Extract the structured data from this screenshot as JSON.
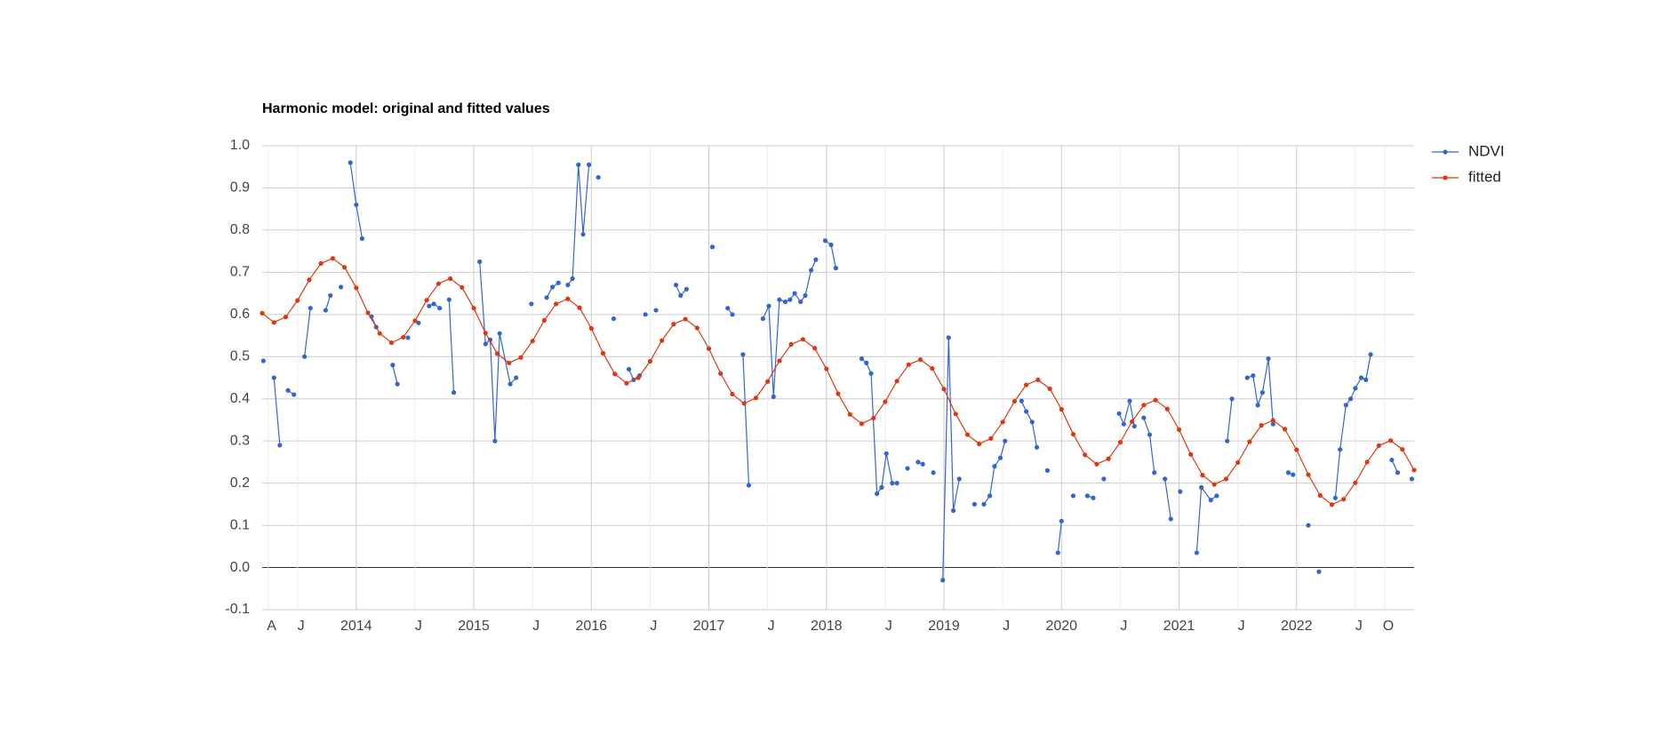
{
  "chart_data": {
    "type": "line",
    "title": "Harmonic model: original and fitted values",
    "xlim": [
      2013.2,
      2023.0
    ],
    "xticks": [
      {
        "value": 2013.25,
        "label": "A"
      },
      {
        "value": 2013.5,
        "label": "J"
      },
      2014,
      {
        "value": 2014.5,
        "label": "J"
      },
      2015,
      {
        "value": 2015.5,
        "label": "J"
      },
      2016,
      {
        "value": 2016.5,
        "label": "J"
      },
      2017,
      {
        "value": 2017.5,
        "label": "J"
      },
      2018,
      {
        "value": 2018.5,
        "label": "J"
      },
      2019,
      {
        "value": 2019.5,
        "label": "J"
      },
      2020,
      {
        "value": 2020.5,
        "label": "J"
      },
      2021,
      {
        "value": 2021.5,
        "label": "J"
      },
      2022,
      {
        "value": 2022.5,
        "label": "J"
      },
      {
        "value": 2022.75,
        "label": "O"
      }
    ],
    "ylim": [
      -0.1,
      1.0
    ],
    "yticks": [
      {
        "value": 1,
        "label": "1.0"
      },
      0.9,
      0.8,
      0.7,
      0.6,
      0.5,
      0.4,
      0.3,
      0.2,
      0.1,
      {
        "value": 0,
        "label": "0.0"
      },
      -0.1
    ],
    "grid": true,
    "legend": "top-right",
    "series": [
      {
        "name": "NDVI",
        "color": "#3366cc",
        "x": [
          2013.21,
          null,
          2013.3,
          2013.35,
          null,
          2013.42,
          2013.47,
          null,
          2013.56,
          2013.61,
          null,
          2013.74,
          2013.78,
          null,
          2013.87,
          null,
          2013.95,
          2014.0,
          2014.05,
          null,
          2014.13,
          2014.17,
          null,
          2014.31,
          2014.35,
          null,
          2014.44,
          null,
          2014.53,
          null,
          2014.62,
          2014.66,
          2014.71,
          null,
          2014.79,
          2014.83,
          null,
          2015.05,
          2015.1,
          2015.14,
          2015.18,
          2015.22,
          2015.31,
          2015.36,
          null,
          2015.49,
          null,
          2015.62,
          2015.67,
          2015.72,
          null,
          2015.8,
          2015.84,
          2015.89,
          2015.93,
          2015.98,
          null,
          2016.06,
          null,
          2016.19,
          null,
          2016.32,
          2016.36,
          2016.41,
          null,
          2016.46,
          null,
          2016.55,
          null,
          2016.72,
          2016.76,
          2016.81,
          null,
          2017.03,
          null,
          2017.16,
          2017.2,
          null,
          2017.29,
          2017.34,
          null,
          2017.46,
          2017.51,
          2017.55,
          2017.6,
          2017.65,
          2017.69,
          2017.73,
          2017.78,
          2017.82,
          2017.87,
          2017.91,
          null,
          2017.99,
          2018.04,
          2018.08,
          null,
          2018.3,
          2018.34,
          2018.38,
          2018.43,
          2018.47,
          2018.51,
          2018.56,
          2018.6,
          null,
          2018.69,
          null,
          2018.78,
          2018.82,
          null,
          2018.91,
          null,
          2018.99,
          2019.04,
          2019.08,
          2019.13,
          null,
          2019.26,
          null,
          2019.34,
          2019.39,
          2019.43,
          2019.48,
          2019.52,
          null,
          2019.66,
          2019.7,
          2019.75,
          2019.79,
          null,
          2019.88,
          null,
          2019.97,
          2020.0,
          null,
          2020.1,
          null,
          2020.22,
          2020.27,
          null,
          2020.36,
          null,
          2020.49,
          2020.53,
          2020.58,
          2020.62,
          null,
          2020.7,
          2020.75,
          2020.79,
          null,
          2020.88,
          2020.93,
          null,
          2021.01,
          null,
          2021.15,
          2021.19,
          2021.27,
          2021.32,
          null,
          2021.41,
          2021.45,
          null,
          2021.58,
          2021.63,
          2021.67,
          2021.71,
          2021.76,
          2021.8,
          null,
          2021.93,
          2021.97,
          null,
          2022.1,
          null,
          2022.19,
          null,
          2022.33,
          2022.37,
          2022.42,
          2022.46,
          2022.5,
          2022.55,
          2022.59,
          2022.63,
          null,
          2022.81,
          2022.86,
          null,
          2022.98
        ],
        "values": [
          0.49,
          null,
          0.45,
          0.29,
          null,
          0.42,
          0.41,
          null,
          0.5,
          0.615,
          null,
          0.61,
          0.645,
          null,
          0.665,
          null,
          0.96,
          0.86,
          0.78,
          null,
          0.595,
          0.57,
          null,
          0.48,
          0.435,
          null,
          0.545,
          null,
          0.58,
          null,
          0.62,
          0.625,
          0.615,
          null,
          0.635,
          0.415,
          null,
          0.725,
          0.53,
          0.54,
          0.3,
          0.555,
          0.435,
          0.45,
          null,
          0.625,
          null,
          0.64,
          0.665,
          0.675,
          null,
          0.67,
          0.685,
          0.955,
          0.79,
          0.955,
          null,
          0.925,
          null,
          0.59,
          null,
          0.47,
          0.445,
          0.455,
          null,
          0.6,
          null,
          0.61,
          null,
          0.67,
          0.645,
          0.66,
          null,
          0.76,
          null,
          0.615,
          0.6,
          null,
          0.505,
          0.195,
          null,
          0.59,
          0.62,
          0.405,
          0.635,
          0.63,
          0.635,
          0.65,
          0.63,
          0.645,
          0.705,
          0.73,
          null,
          0.775,
          0.765,
          0.71,
          null,
          0.495,
          0.485,
          0.46,
          0.175,
          0.19,
          0.27,
          0.2,
          0.2,
          null,
          0.235,
          null,
          0.25,
          0.245,
          null,
          0.225,
          null,
          -0.03,
          0.545,
          0.135,
          0.21,
          null,
          0.15,
          null,
          0.15,
          0.17,
          0.24,
          0.26,
          0.3,
          null,
          0.395,
          0.37,
          0.345,
          0.285,
          null,
          0.23,
          null,
          0.035,
          0.11,
          null,
          0.17,
          null,
          0.17,
          0.165,
          null,
          0.21,
          null,
          0.365,
          0.34,
          0.395,
          0.335,
          null,
          0.355,
          0.315,
          0.225,
          null,
          0.21,
          0.115,
          null,
          0.18,
          null,
          0.035,
          0.19,
          0.16,
          0.17,
          null,
          0.3,
          0.4,
          null,
          0.45,
          0.455,
          0.385,
          0.415,
          0.495,
          0.34,
          null,
          0.225,
          0.22,
          null,
          0.1,
          null,
          -0.01,
          null,
          0.165,
          0.28,
          0.385,
          0.4,
          0.425,
          0.45,
          0.445,
          0.505,
          null,
          0.255,
          0.225,
          null,
          0.21
        ]
      },
      {
        "name": "fitted",
        "color": "#dc3912",
        "x": [
          2013.2,
          2013.3,
          2013.4,
          2013.5,
          2013.6,
          2013.7,
          2013.8,
          2013.9,
          2014.0,
          2014.1,
          2014.2,
          2014.3,
          2014.4,
          2014.5,
          2014.6,
          2014.7,
          2014.8,
          2014.9,
          2015.0,
          2015.1,
          2015.2,
          2015.3,
          2015.4,
          2015.5,
          2015.6,
          2015.7,
          2015.8,
          2015.9,
          2016.0,
          2016.1,
          2016.2,
          2016.3,
          2016.4,
          2016.5,
          2016.6,
          2016.7,
          2016.8,
          2016.9,
          2017.0,
          2017.1,
          2017.2,
          2017.3,
          2017.4,
          2017.5,
          2017.6,
          2017.7,
          2017.8,
          2017.9,
          2018.0,
          2018.1,
          2018.2,
          2018.3,
          2018.4,
          2018.5,
          2018.6,
          2018.7,
          2018.8,
          2018.9,
          2019.0,
          2019.1,
          2019.2,
          2019.3,
          2019.4,
          2019.5,
          2019.6,
          2019.7,
          2019.8,
          2019.9,
          2020.0,
          2020.1,
          2020.2,
          2020.3,
          2020.4,
          2020.5,
          2020.6,
          2020.7,
          2020.8,
          2020.9,
          2021.0,
          2021.1,
          2021.2,
          2021.3,
          2021.4,
          2021.5,
          2021.6,
          2021.7,
          2021.8,
          2021.9,
          2022.0,
          2022.1,
          2022.2,
          2022.3,
          2022.4,
          2022.5,
          2022.6,
          2022.7,
          2022.8,
          2022.9,
          2023.0
        ],
        "values": [
          0.603,
          0.581,
          0.594,
          0.633,
          0.682,
          0.721,
          0.733,
          0.712,
          0.663,
          0.604,
          0.555,
          0.533,
          0.546,
          0.585,
          0.634,
          0.673,
          0.685,
          0.664,
          0.615,
          0.556,
          0.507,
          0.485,
          0.498,
          0.537,
          0.586,
          0.625,
          0.637,
          0.616,
          0.567,
          0.508,
          0.459,
          0.437,
          0.45,
          0.489,
          0.538,
          0.577,
          0.589,
          0.568,
          0.519,
          0.46,
          0.411,
          0.389,
          0.402,
          0.441,
          0.49,
          0.529,
          0.541,
          0.52,
          0.471,
          0.412,
          0.363,
          0.341,
          0.354,
          0.393,
          0.442,
          0.481,
          0.493,
          0.472,
          0.423,
          0.364,
          0.315,
          0.293,
          0.306,
          0.345,
          0.394,
          0.433,
          0.445,
          0.424,
          0.375,
          0.316,
          0.267,
          0.245,
          0.258,
          0.297,
          0.346,
          0.385,
          0.397,
          0.376,
          0.327,
          0.268,
          0.219,
          0.197,
          0.21,
          0.249,
          0.298,
          0.337,
          0.349,
          0.328,
          0.279,
          0.22,
          0.171,
          0.149,
          0.162,
          0.201,
          0.25,
          0.289,
          0.301,
          0.28,
          0.231
        ]
      }
    ]
  }
}
